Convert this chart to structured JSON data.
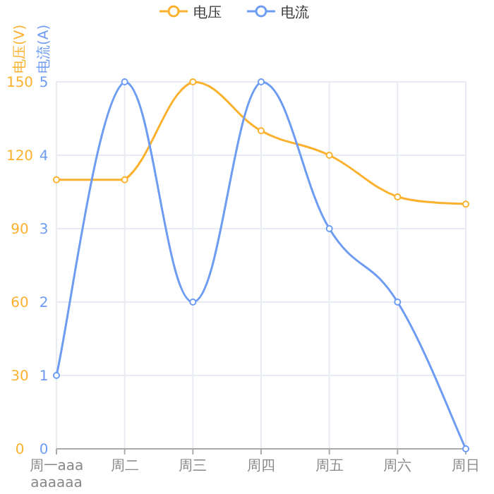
{
  "chart_data": {
    "type": "line",
    "categories": [
      "周一aaa\naaaaaa",
      "周二",
      "周三",
      "周四",
      "周五",
      "周六",
      "周日"
    ],
    "series": [
      {
        "name": "电压",
        "color": "#fbb12e",
        "values": [
          110,
          110,
          150,
          130,
          120,
          103,
          100
        ]
      },
      {
        "name": "电流",
        "color": "#6d9cf2",
        "values": [
          1,
          5,
          2,
          5,
          3,
          2,
          0
        ],
        "axis": "y2"
      }
    ],
    "ylabel": "电压(V)",
    "y2label": "电流(A)",
    "ylim": [
      0,
      150
    ],
    "yticks": [
      0,
      30,
      60,
      90,
      120,
      150
    ],
    "y2lim": [
      0,
      5
    ],
    "y2ticks": [
      0,
      1,
      2,
      3,
      4,
      5
    ],
    "legend": "top",
    "grid": true,
    "marker": "circle",
    "line_style": "solid"
  }
}
